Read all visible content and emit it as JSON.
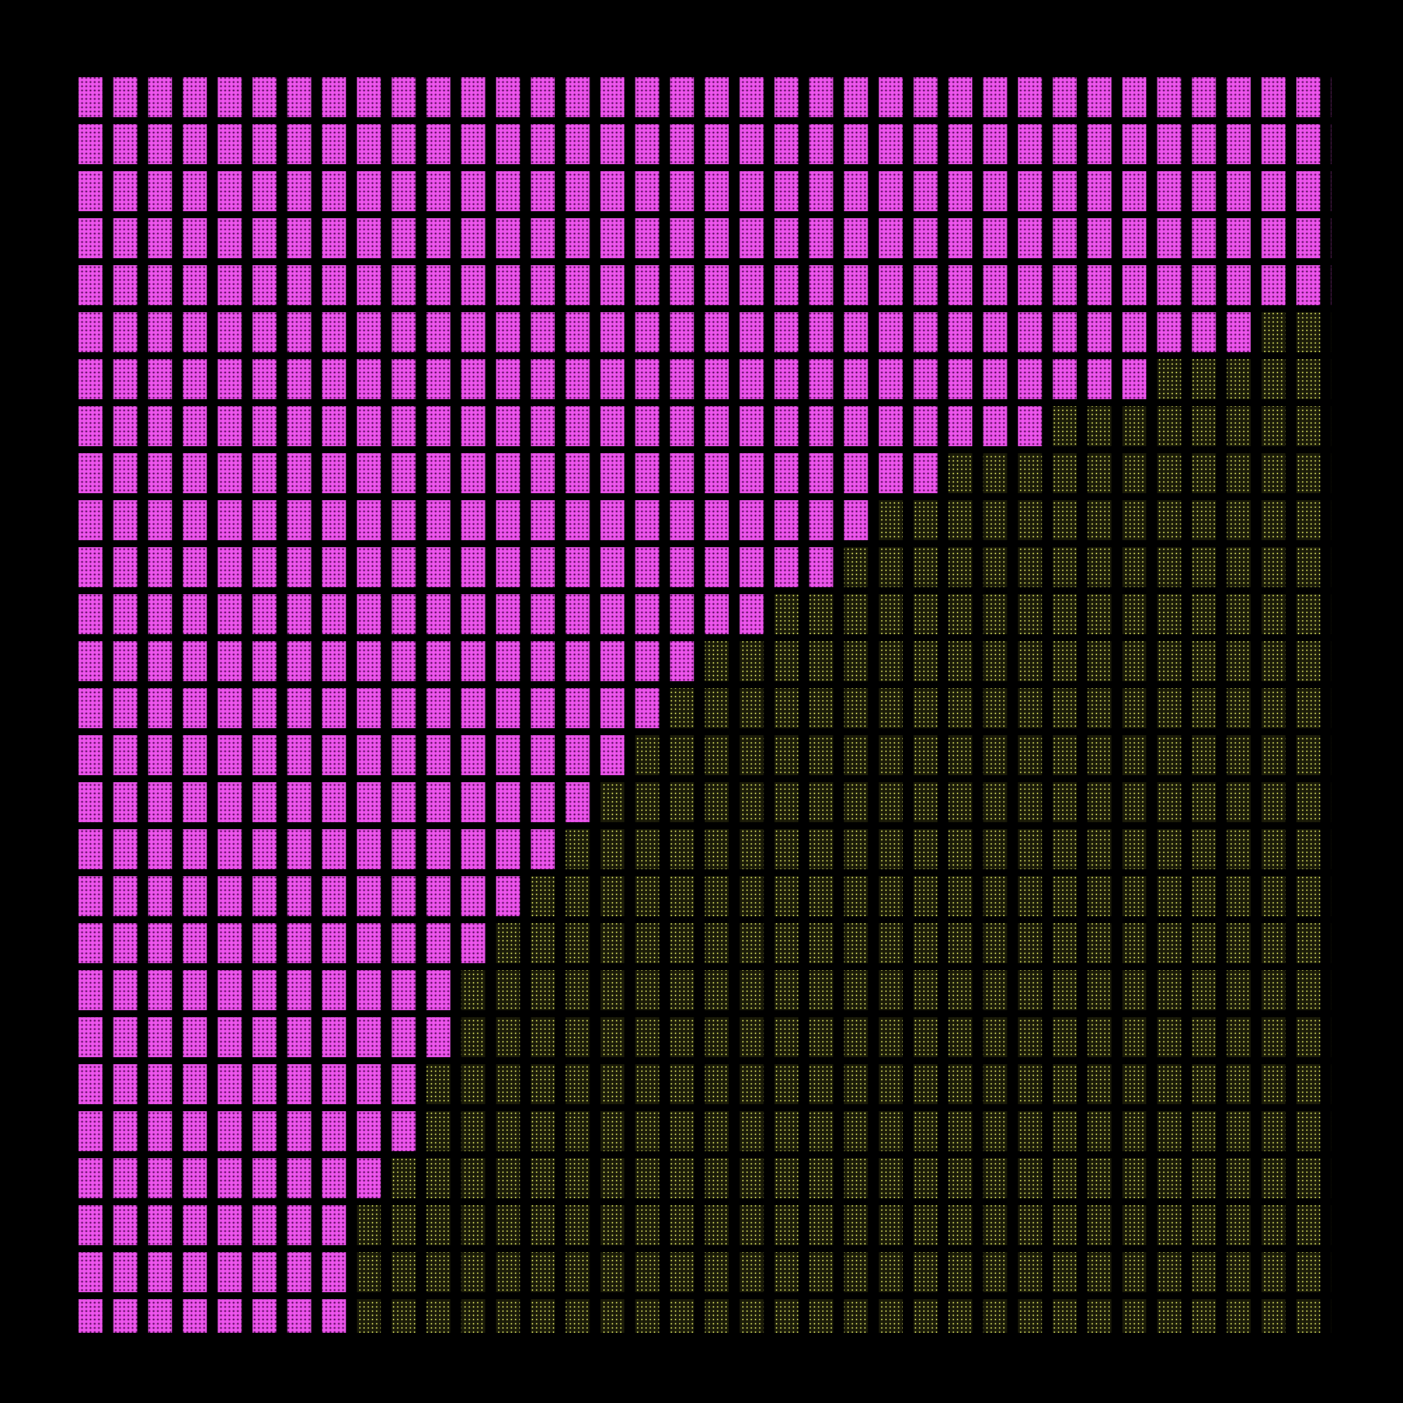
{
  "artwork": {
    "background_color": "#000000",
    "grid": {
      "columns": 37,
      "rows": 27
    },
    "colors": {
      "magenta_fill": "#ee55ee",
      "magenta_dots": "#5a0a5a",
      "olive_fill": "#1a1a08",
      "olive_dots": "#d8e060"
    },
    "magenta_columns_per_row": [
      37,
      37,
      37,
      37,
      37,
      34,
      31,
      28,
      25,
      23,
      22,
      20,
      18,
      17,
      16,
      15,
      14,
      13,
      12,
      11,
      11,
      10,
      10,
      9,
      8,
      8,
      8
    ]
  }
}
